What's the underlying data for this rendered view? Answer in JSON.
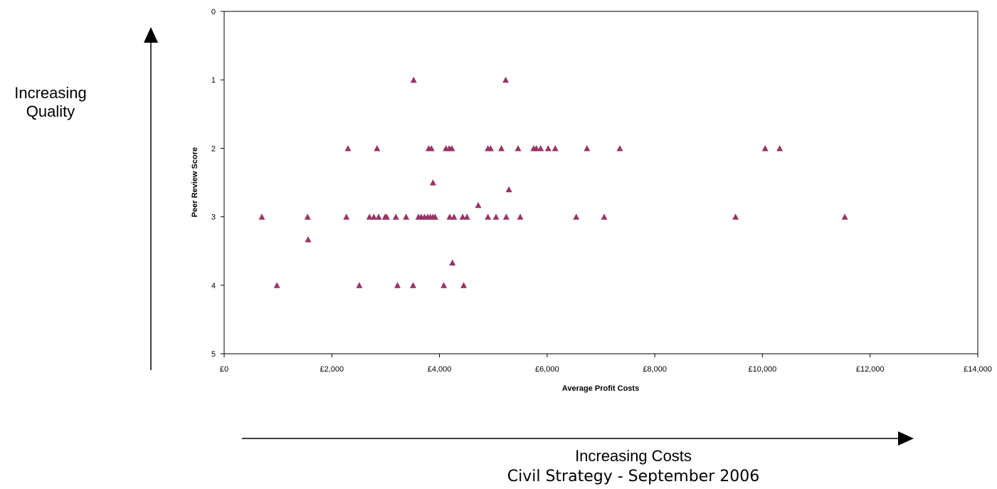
{
  "annotations": {
    "quality_line1": "Increasing",
    "quality_line2": "Quality",
    "costs": "Increasing Costs",
    "footer": "Civil Strategy - September 2006"
  },
  "colors": {
    "marker": "#993366",
    "axis": "#000000"
  },
  "chart_data": {
    "type": "scatter",
    "xlabel": "Average Profit Costs",
    "ylabel": "Peer Review Score",
    "xlim": [
      0,
      14000
    ],
    "ylim": [
      0,
      5
    ],
    "y_reversed": true,
    "grid": false,
    "marker": "triangle",
    "x_ticks": [
      "£0",
      "£2,000",
      "£4,000",
      "£6,000",
      "£8,000",
      "£10,000",
      "£12,000",
      "£14,000"
    ],
    "y_ticks": [
      "0",
      "1",
      "2",
      "3",
      "4",
      "5"
    ],
    "x": [
      3520,
      5230,
      2300,
      2840,
      3800,
      3850,
      4120,
      4180,
      4230,
      4900,
      4950,
      5150,
      5460,
      5750,
      5800,
      5880,
      6020,
      6150,
      6740,
      7350,
      10050,
      10320,
      3880,
      5290,
      4720,
      700,
      1550,
      2270,
      2700,
      2780,
      2870,
      2990,
      3020,
      3190,
      3380,
      3610,
      3660,
      3720,
      3780,
      3830,
      3880,
      3920,
      4190,
      4270,
      4430,
      4510,
      4900,
      5050,
      5240,
      5500,
      6540,
      7060,
      9500,
      11530,
      1560,
      4240,
      980,
      2510,
      3220,
      3510,
      4080,
      4450
    ],
    "y": [
      1,
      1,
      2,
      2,
      2,
      2,
      2,
      2,
      2,
      2,
      2,
      2,
      2,
      2,
      2,
      2,
      2,
      2,
      2,
      2,
      2,
      2,
      2.5,
      2.6,
      2.83,
      3,
      3,
      3,
      3,
      3,
      3,
      3,
      3,
      3,
      3,
      3,
      3,
      3,
      3,
      3,
      3,
      3,
      3,
      3,
      3,
      3,
      3,
      3,
      3,
      3,
      3,
      3,
      3,
      3,
      3.33,
      3.67,
      4,
      4,
      4,
      4,
      4,
      4
    ]
  }
}
